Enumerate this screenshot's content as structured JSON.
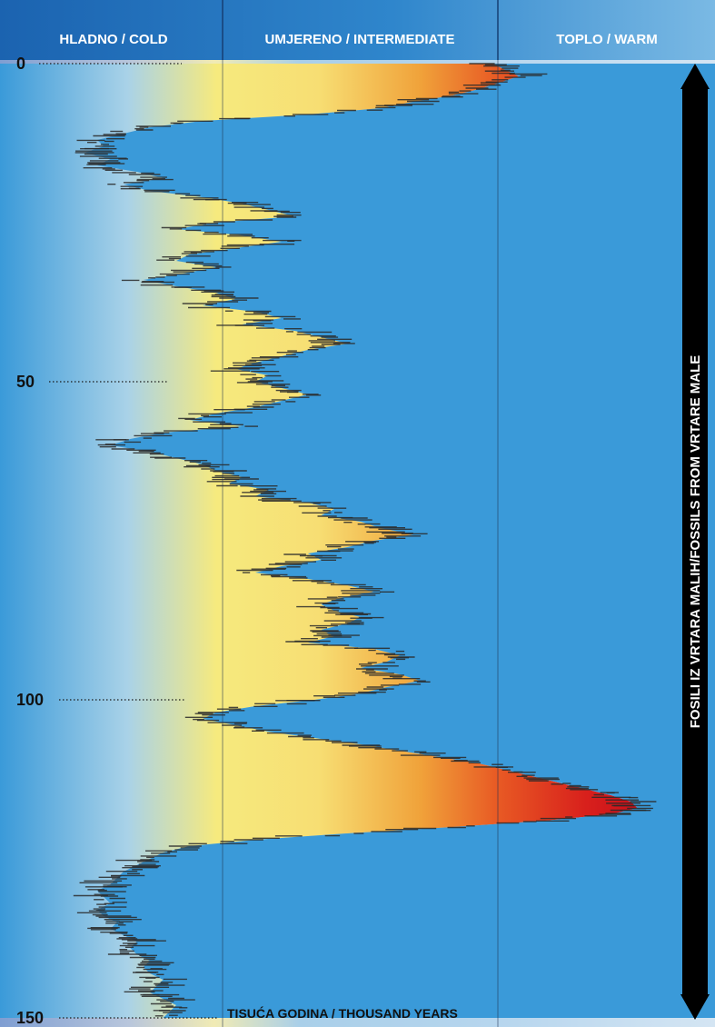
{
  "header": {
    "cold_label": "HLADNO / COLD",
    "intermediate_label": "UMJERENO / INTERMEDIATE",
    "warm_label": "TOPLO / WARM"
  },
  "side_label": "FOSILI IZ VRTARA MALIH/FOSSILS FROM VRTARE MALE",
  "x_unit_label": "TISUĆA GODINA / THOUSAND YEARS",
  "colors": {
    "header_cold": "#1b63b0",
    "header_mid": "#2f86cc",
    "header_warm": "#6cb2e2",
    "curve_fill": "#3a9ad9",
    "background_light": "#cfe2f1",
    "warm_peak": "#d8201c",
    "warm_orange": "#f08a2c",
    "mid_yellow": "#f6ea7e"
  },
  "chart_data": {
    "type": "area",
    "orientation": "vertical",
    "y_axis": {
      "ticks": [
        "0",
        "50",
        "100",
        "150"
      ],
      "direction": "down"
    },
    "x_axis": {
      "categories": [
        "HLADNO / COLD",
        "UMJERENO / INTERMEDIATE",
        "TOPLO / WARM"
      ],
      "range": [
        0,
        1
      ]
    },
    "grid": true,
    "series": [
      {
        "points": [
          [
            0,
            0.72
          ],
          [
            1,
            0.74
          ],
          [
            2,
            0.76
          ],
          [
            3,
            0.73
          ],
          [
            4,
            0.7
          ],
          [
            5,
            0.66
          ],
          [
            6,
            0.6
          ],
          [
            7,
            0.55
          ],
          [
            8,
            0.44
          ],
          [
            9,
            0.28
          ],
          [
            10,
            0.2
          ],
          [
            11,
            0.16
          ],
          [
            12,
            0.12
          ],
          [
            13,
            0.13
          ],
          [
            14,
            0.1
          ],
          [
            15,
            0.14
          ],
          [
            16,
            0.12
          ],
          [
            17,
            0.18
          ],
          [
            18,
            0.22
          ],
          [
            19,
            0.16
          ],
          [
            20,
            0.2
          ],
          [
            21,
            0.28
          ],
          [
            22,
            0.34
          ],
          [
            23,
            0.38
          ],
          [
            24,
            0.42
          ],
          [
            25,
            0.3
          ],
          [
            26,
            0.24
          ],
          [
            27,
            0.34
          ],
          [
            28,
            0.4
          ],
          [
            29,
            0.33
          ],
          [
            30,
            0.26
          ],
          [
            31,
            0.24
          ],
          [
            32,
            0.3
          ],
          [
            33,
            0.25
          ],
          [
            34,
            0.19
          ],
          [
            35,
            0.24
          ],
          [
            36,
            0.3
          ],
          [
            37,
            0.33
          ],
          [
            38,
            0.28
          ],
          [
            39,
            0.36
          ],
          [
            40,
            0.4
          ],
          [
            41,
            0.34
          ],
          [
            42,
            0.42
          ],
          [
            43,
            0.46
          ],
          [
            44,
            0.5
          ],
          [
            45,
            0.44
          ],
          [
            46,
            0.4
          ],
          [
            47,
            0.36
          ],
          [
            48,
            0.33
          ],
          [
            49,
            0.38
          ],
          [
            50,
            0.36
          ],
          [
            51,
            0.4
          ],
          [
            52,
            0.44
          ],
          [
            53,
            0.4
          ],
          [
            54,
            0.36
          ],
          [
            55,
            0.3
          ],
          [
            56,
            0.26
          ],
          [
            57,
            0.34
          ],
          [
            58,
            0.22
          ],
          [
            59,
            0.17
          ],
          [
            60,
            0.14
          ],
          [
            61,
            0.2
          ],
          [
            62,
            0.24
          ],
          [
            63,
            0.28
          ],
          [
            64,
            0.3
          ],
          [
            65,
            0.34
          ],
          [
            66,
            0.32
          ],
          [
            67,
            0.38
          ],
          [
            68,
            0.36
          ],
          [
            69,
            0.44
          ],
          [
            70,
            0.48
          ],
          [
            71,
            0.46
          ],
          [
            72,
            0.52
          ],
          [
            73,
            0.55
          ],
          [
            74,
            0.6
          ],
          [
            75,
            0.54
          ],
          [
            76,
            0.5
          ],
          [
            77,
            0.44
          ],
          [
            78,
            0.46
          ],
          [
            79,
            0.4
          ],
          [
            80,
            0.36
          ],
          [
            81,
            0.44
          ],
          [
            82,
            0.5
          ],
          [
            83,
            0.54
          ],
          [
            84,
            0.49
          ],
          [
            85,
            0.46
          ],
          [
            86,
            0.48
          ],
          [
            87,
            0.52
          ],
          [
            88,
            0.5
          ],
          [
            89,
            0.46
          ],
          [
            90,
            0.48
          ],
          [
            91,
            0.44
          ],
          [
            92,
            0.54
          ],
          [
            93,
            0.58
          ],
          [
            94,
            0.56
          ],
          [
            95,
            0.52
          ],
          [
            96,
            0.58
          ],
          [
            97,
            0.61
          ],
          [
            98,
            0.56
          ],
          [
            99,
            0.52
          ],
          [
            100,
            0.45
          ],
          [
            101,
            0.36
          ],
          [
            102,
            0.3
          ],
          [
            103,
            0.28
          ],
          [
            104,
            0.33
          ],
          [
            105,
            0.38
          ],
          [
            106,
            0.45
          ],
          [
            107,
            0.52
          ],
          [
            108,
            0.58
          ],
          [
            109,
            0.64
          ],
          [
            110,
            0.7
          ],
          [
            111,
            0.74
          ],
          [
            112,
            0.78
          ],
          [
            113,
            0.82
          ],
          [
            114,
            0.86
          ],
          [
            115,
            0.9
          ],
          [
            116,
            0.93
          ],
          [
            117,
            0.94
          ],
          [
            118,
            0.9
          ],
          [
            119,
            0.8
          ],
          [
            120,
            0.66
          ],
          [
            121,
            0.5
          ],
          [
            122,
            0.36
          ],
          [
            123,
            0.26
          ],
          [
            124,
            0.22
          ],
          [
            125,
            0.2
          ],
          [
            126,
            0.18
          ],
          [
            127,
            0.16
          ],
          [
            128,
            0.15
          ],
          [
            129,
            0.14
          ],
          [
            130,
            0.12
          ],
          [
            131,
            0.13
          ],
          [
            132,
            0.14
          ],
          [
            133,
            0.12
          ],
          [
            134,
            0.13
          ],
          [
            135,
            0.15
          ],
          [
            136,
            0.14
          ],
          [
            137,
            0.16
          ],
          [
            138,
            0.18
          ],
          [
            139,
            0.17
          ],
          [
            140,
            0.18
          ],
          [
            141,
            0.2
          ],
          [
            142,
            0.19
          ],
          [
            143,
            0.2
          ],
          [
            144,
            0.22
          ],
          [
            145,
            0.21
          ],
          [
            146,
            0.2
          ],
          [
            147,
            0.22
          ],
          [
            148,
            0.24
          ],
          [
            149,
            0.23
          ],
          [
            150,
            0.22
          ]
        ]
      }
    ]
  }
}
